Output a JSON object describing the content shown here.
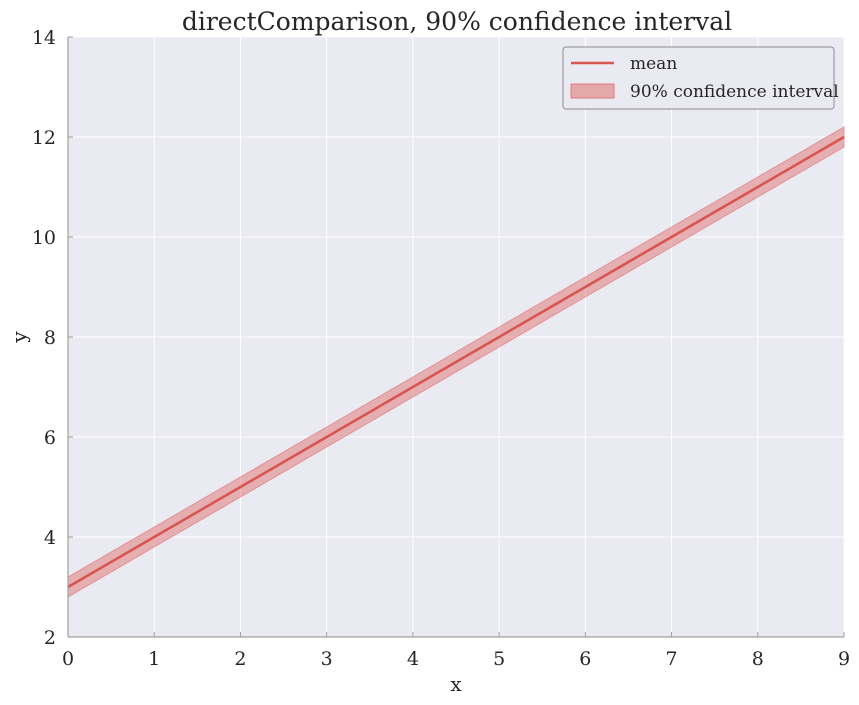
{
  "chart_data": {
    "type": "line",
    "title": "directComparison, 90% confidence interval",
    "xlabel": "x",
    "ylabel": "y",
    "xlim": [
      0,
      9
    ],
    "ylim": [
      2,
      14
    ],
    "xticks": [
      0,
      1,
      2,
      3,
      4,
      5,
      6,
      7,
      8,
      9
    ],
    "yticks": [
      2,
      4,
      6,
      8,
      10,
      12,
      14
    ],
    "grid": true,
    "legend_position": "top-right",
    "series": [
      {
        "name": "mean",
        "kind": "line",
        "color": "#d9534f",
        "x": [
          0,
          1,
          2,
          3,
          4,
          5,
          6,
          7,
          8,
          9
        ],
        "y": [
          3,
          4,
          5,
          6,
          7,
          8,
          9,
          10,
          11,
          12
        ]
      },
      {
        "name": "90% confidence interval",
        "kind": "band",
        "color": "#e07b7b",
        "x": [
          0,
          1,
          2,
          3,
          4,
          5,
          6,
          7,
          8,
          9
        ],
        "lower": [
          2.8,
          3.8,
          4.8,
          5.8,
          6.8,
          7.8,
          8.8,
          9.8,
          10.8,
          11.8
        ],
        "upper": [
          3.2,
          4.2,
          5.2,
          6.2,
          7.2,
          8.2,
          9.2,
          10.2,
          11.2,
          12.2
        ]
      }
    ],
    "colors": {
      "plot_background": "#eaeaf2",
      "grid": "#ffffff",
      "spine": "#a0a0a0"
    }
  }
}
